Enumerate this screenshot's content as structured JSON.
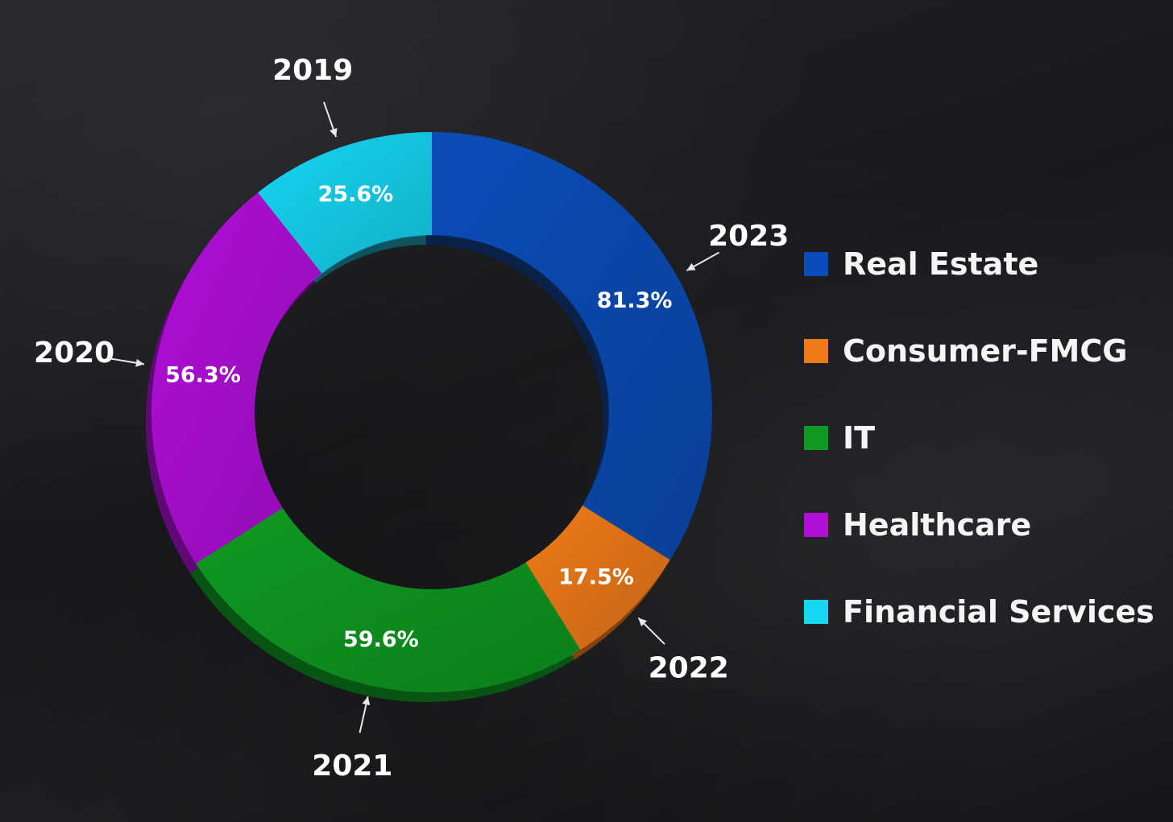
{
  "chart_data": {
    "type": "pie",
    "donut": true,
    "slices": [
      {
        "year": "2023",
        "category": "Real Estate",
        "value": 81.3,
        "label": "81.3%",
        "color": "#0b4db8"
      },
      {
        "year": "2022",
        "category": "Consumer-FMCG",
        "value": 17.5,
        "label": "17.5%",
        "color": "#ee7a19"
      },
      {
        "year": "2021",
        "category": "IT",
        "value": 59.6,
        "label": "59.6%",
        "color": "#0f9a22"
      },
      {
        "year": "2020",
        "category": "Healthcare",
        "value": 56.3,
        "label": "56.3%",
        "color": "#b00fd8"
      },
      {
        "year": "2019",
        "category": "Financial Services",
        "value": 25.6,
        "label": "25.6%",
        "color": "#16d6f2"
      }
    ],
    "legend": {
      "position": "right",
      "entries": [
        {
          "label": "Real Estate",
          "color": "#0b4db8"
        },
        {
          "label": "Consumer-FMCG",
          "color": "#ee7a19"
        },
        {
          "label": "IT",
          "color": "#0f9a22"
        },
        {
          "label": "Healthcare",
          "color": "#b00fd8"
        },
        {
          "label": "Financial Services",
          "color": "#16d6f2"
        }
      ]
    }
  }
}
